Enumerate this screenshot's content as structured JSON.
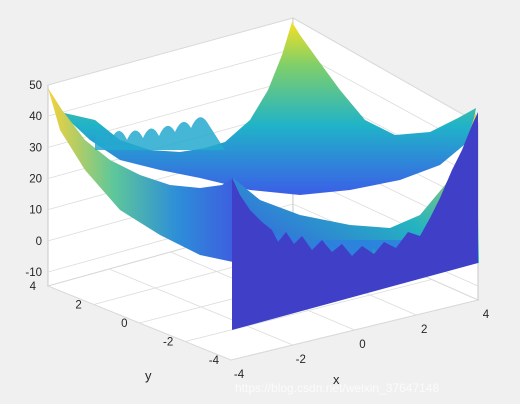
{
  "chart_data": {
    "type": "surface-3d",
    "xlabel": "x",
    "ylabel": "y",
    "zlabel": "",
    "xlim": [
      -4,
      4
    ],
    "ylim": [
      -4,
      4
    ],
    "zlim": [
      -10,
      50
    ],
    "x_ticks": [
      "-4",
      "-2",
      "0",
      "2",
      "4"
    ],
    "y_ticks": [
      "-4",
      "-2",
      "0",
      "2",
      "4"
    ],
    "z_ticks": [
      "-10",
      "0",
      "10",
      "20",
      "30",
      "40",
      "50"
    ],
    "grid": true,
    "colormap": "parula",
    "colors": {
      "cut_face": "#3f3fc8",
      "low": "#352a87",
      "high": "#f9fb0e"
    },
    "description_values": {
      "peak_corner_z": 47,
      "center_min_z": 0
    }
  },
  "watermark": {
    "text": "https://blog.csdn.net/weixin_37647148"
  }
}
